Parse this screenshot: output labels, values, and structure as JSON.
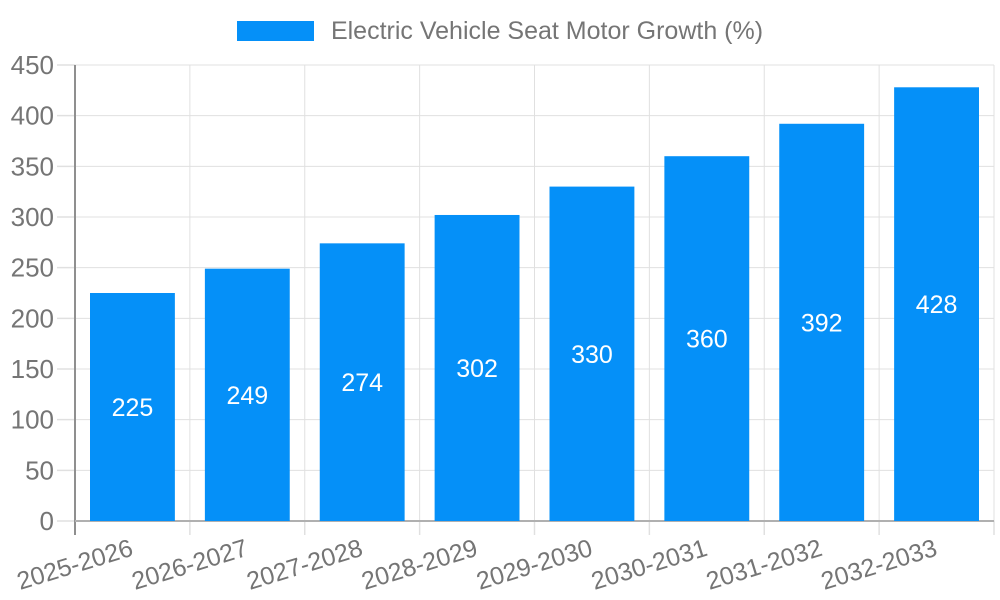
{
  "chart_data": {
    "type": "bar",
    "title": "Electric Vehicle Seat Motor Growth (%)",
    "categories": [
      "2025-2026",
      "2026-2027",
      "2027-2028",
      "2028-2029",
      "2029-2030",
      "2030-2031",
      "2031-2032",
      "2032-2033"
    ],
    "values": [
      225,
      249,
      274,
      302,
      330,
      360,
      392,
      428
    ],
    "xlabel": "",
    "ylabel": "",
    "ylim": [
      0,
      450
    ],
    "ytick_step": 50,
    "yticks": [
      0,
      50,
      100,
      150,
      200,
      250,
      300,
      350,
      400,
      450
    ],
    "grid": true,
    "legend_position": "top",
    "bar_color": "#0590f8",
    "bar_label_color": "#ffffff",
    "text_color": "#757575",
    "grid_color": "#e0e0e0",
    "y_axis_color": "#8f8f8f",
    "x_axis_color": "#b0b0b0"
  }
}
